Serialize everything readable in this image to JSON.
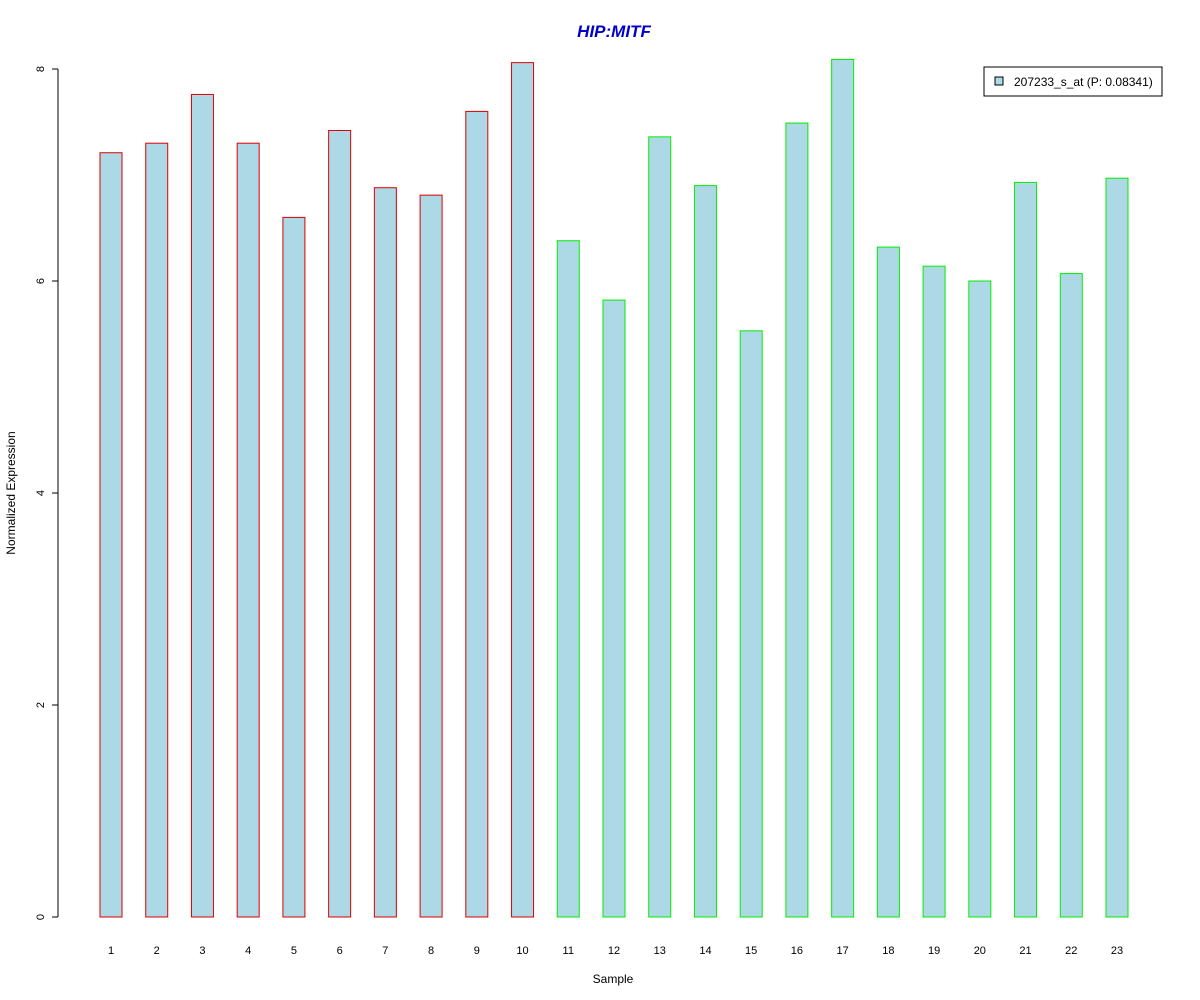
{
  "chart_data": {
    "type": "bar",
    "title": "HIP:MITF",
    "xlabel": "Sample",
    "ylabel": "Normalized Expression",
    "categories": [
      "1",
      "2",
      "3",
      "4",
      "5",
      "6",
      "7",
      "8",
      "9",
      "10",
      "11",
      "12",
      "13",
      "14",
      "15",
      "16",
      "17",
      "18",
      "19",
      "20",
      "21",
      "22",
      "23"
    ],
    "series": [
      {
        "name": "207233_s_at (P: 0.08341)",
        "values": [
          7.21,
          7.3,
          7.76,
          7.3,
          6.6,
          7.42,
          6.88,
          6.81,
          7.6,
          8.06,
          6.38,
          5.82,
          7.36,
          6.9,
          5.53,
          7.49,
          8.09,
          6.32,
          6.14,
          6.0,
          6.93,
          6.07,
          6.97
        ]
      }
    ],
    "groups": [
      {
        "samples": [
          1,
          2,
          3,
          4,
          5,
          6,
          7,
          8,
          9,
          10
        ],
        "border_color": "#dd0000"
      },
      {
        "samples": [
          11,
          12,
          13,
          14,
          15,
          16,
          17,
          18,
          19,
          20,
          21,
          22,
          23
        ],
        "border_color": "#00ee00"
      }
    ],
    "bar_fill": "#add8e6",
    "title_color": "#0000cc",
    "ylim": [
      0,
      8
    ],
    "yticks": [
      0,
      2,
      4,
      6,
      8
    ],
    "grid": false,
    "legend_position": "top-right"
  }
}
